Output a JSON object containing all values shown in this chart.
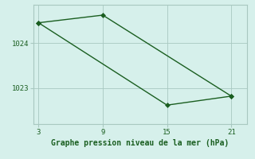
{
  "line1_x": [
    3,
    9,
    21
  ],
  "line1_y": [
    1024.45,
    1024.62,
    1022.82
  ],
  "line2_x": [
    3,
    15,
    21
  ],
  "line2_y": [
    1024.45,
    1022.62,
    1022.82
  ],
  "line_color": "#1a5e20",
  "bg_color": "#d6f0eb",
  "grid_color": "#a8c8c0",
  "xlabel": "Graphe pression niveau de la mer (hPa)",
  "xticks": [
    3,
    9,
    15,
    21
  ],
  "yticks": [
    1023,
    1024
  ],
  "ylim": [
    1022.2,
    1024.85
  ],
  "xlim": [
    2.5,
    22.5
  ],
  "markersize": 3,
  "linewidth": 1.0
}
